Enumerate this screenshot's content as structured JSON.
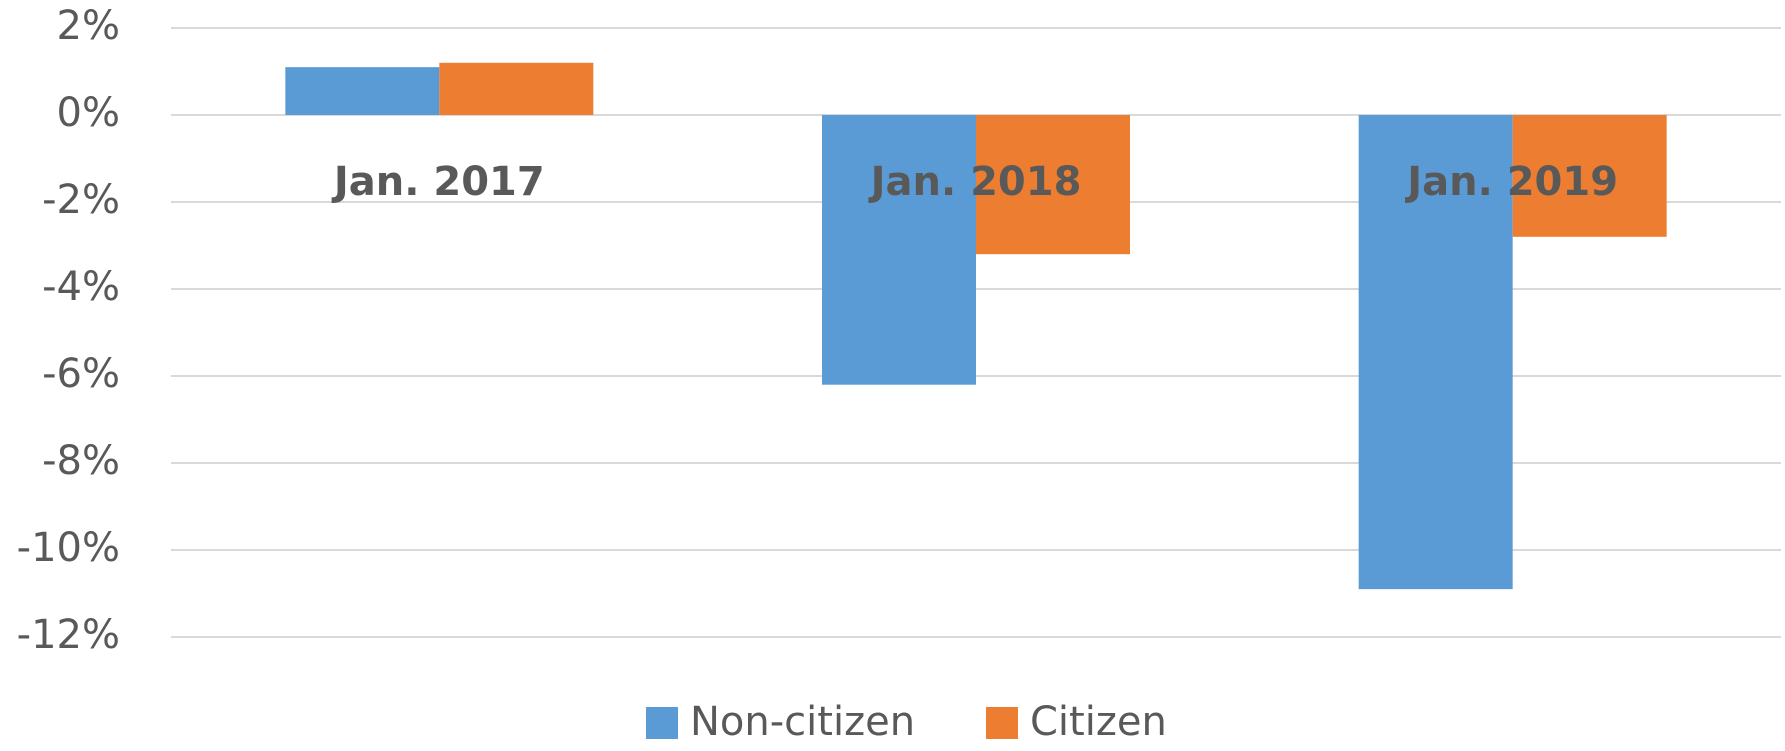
{
  "chart_data": {
    "type": "bar",
    "categories": [
      "Jan. 2017",
      "Jan. 2018",
      "Jan. 2019"
    ],
    "series": [
      {
        "name": "Non-citizen",
        "color": "#5b9bd5",
        "values": [
          1.1,
          -6.2,
          -10.9
        ]
      },
      {
        "name": "Citizen",
        "color": "#ed7d31",
        "values": [
          1.2,
          -3.2,
          -2.8
        ]
      }
    ],
    "ylim": [
      -12,
      2
    ],
    "yticks": [
      {
        "value": 2,
        "label": "2%"
      },
      {
        "value": 0,
        "label": "0%"
      },
      {
        "value": -2,
        "label": "-2%"
      },
      {
        "value": -4,
        "label": "-4%"
      },
      {
        "value": -6,
        "label": "-6%"
      },
      {
        "value": -8,
        "label": "-8%"
      },
      {
        "value": -10,
        "label": "-10%"
      },
      {
        "value": -12,
        "label": "-12%"
      }
    ],
    "grid": true,
    "legend": "bottom"
  }
}
